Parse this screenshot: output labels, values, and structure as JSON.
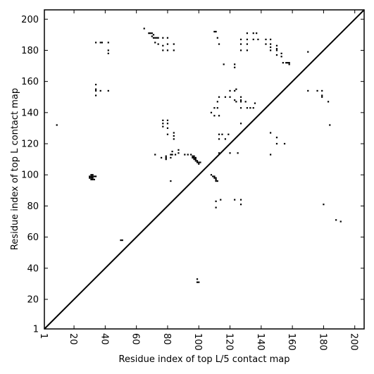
{
  "chart_data": {
    "type": "scatter",
    "title": "",
    "xlabel": "Residue index of top L/5 contact map",
    "ylabel": "Residue index of top L contact map",
    "xlim": [
      1,
      206
    ],
    "ylim": [
      1,
      206
    ],
    "x_ticks": [
      1,
      20,
      40,
      60,
      80,
      100,
      120,
      140,
      160,
      180,
      200
    ],
    "y_ticks": [
      1,
      20,
      40,
      60,
      80,
      100,
      120,
      140,
      160,
      180,
      200
    ],
    "diagonal": true,
    "grid": false,
    "marker_color": "#000000",
    "points": [
      [
        9,
        132
      ],
      [
        31,
        97
      ],
      [
        32,
        97
      ],
      [
        33,
        97
      ],
      [
        30,
        98
      ],
      [
        31,
        98
      ],
      [
        32,
        98
      ],
      [
        30,
        99
      ],
      [
        31,
        99
      ],
      [
        32,
        99
      ],
      [
        33,
        99
      ],
      [
        31,
        100
      ],
      [
        32,
        100
      ],
      [
        34,
        99
      ],
      [
        34,
        151
      ],
      [
        34,
        154
      ],
      [
        34,
        155
      ],
      [
        34,
        158
      ],
      [
        37,
        154
      ],
      [
        42,
        154
      ],
      [
        34,
        185
      ],
      [
        37,
        185
      ],
      [
        38,
        185
      ],
      [
        42,
        185
      ],
      [
        42,
        180
      ],
      [
        42,
        178
      ],
      [
        50,
        58
      ],
      [
        51,
        58
      ],
      [
        65,
        194
      ],
      [
        68,
        191
      ],
      [
        69,
        191
      ],
      [
        70,
        191
      ],
      [
        71,
        190
      ],
      [
        70,
        189
      ],
      [
        71,
        188
      ],
      [
        72,
        188
      ],
      [
        73,
        188
      ],
      [
        74,
        188
      ],
      [
        72,
        185
      ],
      [
        74,
        184
      ],
      [
        77,
        183
      ],
      [
        77,
        180
      ],
      [
        77,
        188
      ],
      [
        80,
        188
      ],
      [
        80,
        184
      ],
      [
        80,
        180
      ],
      [
        84,
        184
      ],
      [
        84,
        180
      ],
      [
        72,
        113
      ],
      [
        76,
        111
      ],
      [
        79,
        110
      ],
      [
        79,
        111
      ],
      [
        79,
        112
      ],
      [
        82,
        111
      ],
      [
        82,
        113
      ],
      [
        83,
        113
      ],
      [
        83,
        115
      ],
      [
        85,
        113
      ],
      [
        87,
        114
      ],
      [
        87,
        116
      ],
      [
        91,
        113
      ],
      [
        93,
        113
      ],
      [
        95,
        113
      ],
      [
        96,
        111
      ],
      [
        96,
        112
      ],
      [
        97,
        110
      ],
      [
        97,
        111
      ],
      [
        97,
        112
      ],
      [
        98,
        110
      ],
      [
        98,
        111
      ],
      [
        98,
        109
      ],
      [
        99,
        109
      ],
      [
        99,
        108
      ],
      [
        100,
        107
      ],
      [
        100,
        108
      ],
      [
        101,
        108
      ],
      [
        99,
        31
      ],
      [
        100,
        31
      ],
      [
        99,
        33
      ],
      [
        82,
        96
      ],
      [
        77,
        131
      ],
      [
        77,
        133
      ],
      [
        77,
        135
      ],
      [
        80,
        130
      ],
      [
        80,
        133
      ],
      [
        80,
        135
      ],
      [
        80,
        126
      ],
      [
        84,
        125
      ],
      [
        84,
        123
      ],
      [
        84,
        127
      ],
      [
        108,
        100
      ],
      [
        109,
        99
      ],
      [
        110,
        99
      ],
      [
        110,
        98
      ],
      [
        111,
        98
      ],
      [
        111,
        97
      ],
      [
        111,
        96
      ],
      [
        112,
        96
      ],
      [
        111,
        83
      ],
      [
        111,
        79
      ],
      [
        114,
        84
      ],
      [
        108,
        140
      ],
      [
        110,
        143
      ],
      [
        112,
        143
      ],
      [
        110,
        138
      ],
      [
        113,
        138
      ],
      [
        112,
        147
      ],
      [
        113,
        150
      ],
      [
        117,
        150
      ],
      [
        120,
        150
      ],
      [
        120,
        154
      ],
      [
        123,
        154
      ],
      [
        124,
        155
      ],
      [
        123,
        148
      ],
      [
        124,
        147
      ],
      [
        127,
        148
      ],
      [
        127,
        147
      ],
      [
        127,
        150
      ],
      [
        130,
        147
      ],
      [
        131,
        143
      ],
      [
        133,
        143
      ],
      [
        135,
        143
      ],
      [
        136,
        146
      ],
      [
        127,
        143
      ],
      [
        113,
        126
      ],
      [
        115,
        126
      ],
      [
        119,
        126
      ],
      [
        113,
        123
      ],
      [
        117,
        123
      ],
      [
        113,
        114
      ],
      [
        120,
        114
      ],
      [
        125,
        114
      ],
      [
        127,
        133
      ],
      [
        123,
        84
      ],
      [
        127,
        84
      ],
      [
        127,
        81
      ],
      [
        110,
        192
      ],
      [
        111,
        192
      ],
      [
        112,
        188
      ],
      [
        113,
        184
      ],
      [
        116,
        171
      ],
      [
        123,
        171
      ],
      [
        123,
        169
      ],
      [
        127,
        187
      ],
      [
        127,
        184
      ],
      [
        127,
        180
      ],
      [
        131,
        191
      ],
      [
        131,
        187
      ],
      [
        131,
        184
      ],
      [
        131,
        180
      ],
      [
        135,
        191
      ],
      [
        135,
        187
      ],
      [
        137,
        191
      ],
      [
        138,
        187
      ],
      [
        143,
        187
      ],
      [
        143,
        184
      ],
      [
        146,
        187
      ],
      [
        146,
        184
      ],
      [
        146,
        182
      ],
      [
        146,
        180
      ],
      [
        150,
        183
      ],
      [
        150,
        181
      ],
      [
        150,
        180
      ],
      [
        150,
        177
      ],
      [
        153,
        178
      ],
      [
        153,
        176
      ],
      [
        154,
        172
      ],
      [
        156,
        172
      ],
      [
        157,
        172
      ],
      [
        158,
        172
      ],
      [
        158,
        171
      ],
      [
        146,
        127
      ],
      [
        150,
        124
      ],
      [
        150,
        120
      ],
      [
        155,
        120
      ],
      [
        146,
        113
      ],
      [
        170,
        179
      ],
      [
        170,
        154
      ],
      [
        176,
        154
      ],
      [
        179,
        154
      ],
      [
        179,
        151
      ],
      [
        179,
        150
      ],
      [
        183,
        147
      ],
      [
        184,
        132
      ],
      [
        180,
        81
      ],
      [
        188,
        71
      ],
      [
        191,
        70
      ]
    ]
  }
}
